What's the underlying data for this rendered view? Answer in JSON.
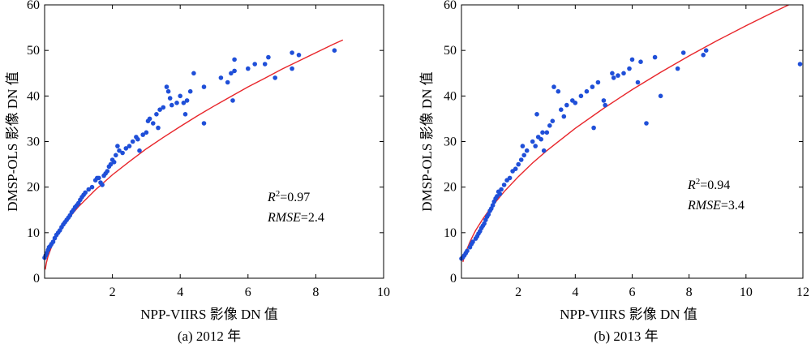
{
  "chart_data": [
    {
      "id": "a",
      "type": "scatter",
      "caption": "(a) 2012 年",
      "xlabel": "NPP-VIIRS 影像 DN 值",
      "ylabel": "DMSP-OLS 影像 DN 值",
      "xlim": [
        0,
        10
      ],
      "ylim": [
        0,
        60
      ],
      "xticks": [
        2,
        4,
        6,
        8,
        10
      ],
      "yticks": [
        0,
        10,
        20,
        30,
        40,
        50,
        60
      ],
      "xtick_labels": [
        "2",
        "4",
        "6",
        "8",
        "10"
      ],
      "ytick_labels": [
        "0",
        "10",
        "20",
        "30",
        "40",
        "50",
        "60"
      ],
      "grid": false,
      "point_color": "#1f4fd8",
      "fit_color": "#e8262b",
      "fit_curve": [
        [
          0.02,
          1.9
        ],
        [
          0.05,
          3.3
        ],
        [
          0.1,
          4.8
        ],
        [
          0.2,
          6.8
        ],
        [
          0.3,
          8.4
        ],
        [
          0.4,
          9.7
        ],
        [
          0.5,
          10.9
        ],
        [
          0.75,
          13.5
        ],
        [
          1.0,
          15.7
        ],
        [
          1.5,
          19.4
        ],
        [
          2.0,
          22.7
        ],
        [
          2.5,
          25.6
        ],
        [
          3.0,
          28.4
        ],
        [
          3.5,
          30.9
        ],
        [
          4.0,
          33.3
        ],
        [
          4.5,
          35.6
        ],
        [
          5.0,
          37.8
        ],
        [
          5.5,
          39.9
        ],
        [
          6.0,
          42.0
        ],
        [
          6.5,
          43.9
        ],
        [
          7.0,
          45.9
        ],
        [
          7.5,
          47.7
        ],
        [
          8.0,
          49.5
        ],
        [
          8.5,
          51.3
        ],
        [
          8.8,
          52.3
        ]
      ],
      "points": [
        [
          0.0,
          4.5
        ],
        [
          0.03,
          5.0
        ],
        [
          0.06,
          5.5
        ],
        [
          0.1,
          6.2
        ],
        [
          0.13,
          6.8
        ],
        [
          0.16,
          7.0
        ],
        [
          0.2,
          7.5
        ],
        [
          0.25,
          8.0
        ],
        [
          0.3,
          8.8
        ],
        [
          0.35,
          9.5
        ],
        [
          0.4,
          10.0
        ],
        [
          0.45,
          10.5
        ],
        [
          0.5,
          11.2
        ],
        [
          0.55,
          11.8
        ],
        [
          0.6,
          12.3
        ],
        [
          0.65,
          12.8
        ],
        [
          0.7,
          13.3
        ],
        [
          0.75,
          13.8
        ],
        [
          0.8,
          14.5
        ],
        [
          0.85,
          15.0
        ],
        [
          0.9,
          15.6
        ],
        [
          0.95,
          16.0
        ],
        [
          1.0,
          16.5
        ],
        [
          1.05,
          17.2
        ],
        [
          1.1,
          17.8
        ],
        [
          1.15,
          18.3
        ],
        [
          1.2,
          18.8
        ],
        [
          1.3,
          19.5
        ],
        [
          1.4,
          20.0
        ],
        [
          1.5,
          21.5
        ],
        [
          1.55,
          22.0
        ],
        [
          1.6,
          22.0
        ],
        [
          1.65,
          21.0
        ],
        [
          1.7,
          20.5
        ],
        [
          1.75,
          22.5
        ],
        [
          1.8,
          23.0
        ],
        [
          1.85,
          23.5
        ],
        [
          1.9,
          24.5
        ],
        [
          1.95,
          25.0
        ],
        [
          2.0,
          26.0
        ],
        [
          2.05,
          25.5
        ],
        [
          2.1,
          27.0
        ],
        [
          2.15,
          29.0
        ],
        [
          2.2,
          28.0
        ],
        [
          2.3,
          27.5
        ],
        [
          2.4,
          28.5
        ],
        [
          2.5,
          29.0
        ],
        [
          2.6,
          30.0
        ],
        [
          2.7,
          31.0
        ],
        [
          2.75,
          30.5
        ],
        [
          2.8,
          28.0
        ],
        [
          2.9,
          31.5
        ],
        [
          3.0,
          32.0
        ],
        [
          3.05,
          34.5
        ],
        [
          3.1,
          35.0
        ],
        [
          3.2,
          34.0
        ],
        [
          3.3,
          36.0
        ],
        [
          3.35,
          33.0
        ],
        [
          3.4,
          37.0
        ],
        [
          3.5,
          37.5
        ],
        [
          3.6,
          42.0
        ],
        [
          3.65,
          41.0
        ],
        [
          3.7,
          39.5
        ],
        [
          3.75,
          38.0
        ],
        [
          3.9,
          38.5
        ],
        [
          4.0,
          40.0
        ],
        [
          4.1,
          38.5
        ],
        [
          4.15,
          36.0
        ],
        [
          4.2,
          39.0
        ],
        [
          4.3,
          41.0
        ],
        [
          4.4,
          45.0
        ],
        [
          4.7,
          42.0
        ],
        [
          4.7,
          34.0
        ],
        [
          5.2,
          44.0
        ],
        [
          5.4,
          43.0
        ],
        [
          5.5,
          45.0
        ],
        [
          5.55,
          39.0
        ],
        [
          5.6,
          48.0
        ],
        [
          5.6,
          45.5
        ],
        [
          6.0,
          46.0
        ],
        [
          6.2,
          47.0
        ],
        [
          6.5,
          47.0
        ],
        [
          6.6,
          48.5
        ],
        [
          6.8,
          44.0
        ],
        [
          7.3,
          49.5
        ],
        [
          7.3,
          46.0
        ],
        [
          7.5,
          49.0
        ],
        [
          8.55,
          50.0
        ]
      ],
      "annotation": {
        "r2_label": "R",
        "r2_sup": "2",
        "r2_value": "=0.97",
        "rmse_label": "RMSE",
        "rmse_value": "=2.4"
      }
    },
    {
      "id": "b",
      "type": "scatter",
      "caption": "(b) 2013 年",
      "xlabel": "NPP-VIIRS 影像 DN 值",
      "ylabel": "DMSP-OLS 影像 DN 值",
      "xlim": [
        0,
        12
      ],
      "ylim": [
        0,
        60
      ],
      "xticks": [
        2,
        4,
        6,
        8,
        10,
        12
      ],
      "yticks": [
        0,
        10,
        20,
        30,
        40,
        50,
        60
      ],
      "xtick_labels": [
        "2",
        "4",
        "6",
        "8",
        "10",
        "12"
      ],
      "ytick_labels": [
        "0",
        "10",
        "20",
        "30",
        "40",
        "50",
        "60"
      ],
      "grid": false,
      "point_color": "#1f4fd8",
      "fit_color": "#e8262b",
      "fit_curve": [
        [
          0.05,
          3.6
        ],
        [
          0.1,
          4.7
        ],
        [
          0.2,
          6.5
        ],
        [
          0.3,
          8.0
        ],
        [
          0.4,
          9.3
        ],
        [
          0.5,
          10.5
        ],
        [
          0.75,
          13.0
        ],
        [
          1.0,
          15.2
        ],
        [
          1.5,
          19.0
        ],
        [
          2.0,
          22.3
        ],
        [
          2.5,
          25.3
        ],
        [
          3.0,
          28.0
        ],
        [
          4.0,
          32.9
        ],
        [
          5.0,
          37.3
        ],
        [
          6.0,
          41.4
        ],
        [
          7.0,
          45.2
        ],
        [
          8.0,
          48.8
        ],
        [
          9.0,
          52.2
        ],
        [
          10.0,
          55.4
        ],
        [
          11.0,
          58.5
        ],
        [
          11.5,
          60.0
        ]
      ],
      "points": [
        [
          0.0,
          4.3
        ],
        [
          0.05,
          4.6
        ],
        [
          0.1,
          5.0
        ],
        [
          0.15,
          5.5
        ],
        [
          0.2,
          6.0
        ],
        [
          0.3,
          6.8
        ],
        [
          0.35,
          7.5
        ],
        [
          0.4,
          8.0
        ],
        [
          0.5,
          8.7
        ],
        [
          0.55,
          9.2
        ],
        [
          0.6,
          9.8
        ],
        [
          0.65,
          10.3
        ],
        [
          0.7,
          11.0
        ],
        [
          0.75,
          11.5
        ],
        [
          0.8,
          12.0
        ],
        [
          0.85,
          12.8
        ],
        [
          0.9,
          13.5
        ],
        [
          0.95,
          14.0
        ],
        [
          1.0,
          14.8
        ],
        [
          1.05,
          15.3
        ],
        [
          1.1,
          16.0
        ],
        [
          1.15,
          16.8
        ],
        [
          1.2,
          17.5
        ],
        [
          1.25,
          18.0
        ],
        [
          1.3,
          19.0
        ],
        [
          1.35,
          18.5
        ],
        [
          1.4,
          19.5
        ],
        [
          1.5,
          20.5
        ],
        [
          1.6,
          21.5
        ],
        [
          1.7,
          22.0
        ],
        [
          1.8,
          23.5
        ],
        [
          1.9,
          24.0
        ],
        [
          2.0,
          25.0
        ],
        [
          2.1,
          26.0
        ],
        [
          2.15,
          29.0
        ],
        [
          2.2,
          27.0
        ],
        [
          2.3,
          28.0
        ],
        [
          2.5,
          30.0
        ],
        [
          2.6,
          29.0
        ],
        [
          2.65,
          36.0
        ],
        [
          2.7,
          31.0
        ],
        [
          2.8,
          30.5
        ],
        [
          2.85,
          32.0
        ],
        [
          2.9,
          28.0
        ],
        [
          3.0,
          32.0
        ],
        [
          3.1,
          33.5
        ],
        [
          3.2,
          34.5
        ],
        [
          3.25,
          42.0
        ],
        [
          3.4,
          41.0
        ],
        [
          3.5,
          37.0
        ],
        [
          3.6,
          35.5
        ],
        [
          3.7,
          38.0
        ],
        [
          3.9,
          39.0
        ],
        [
          4.0,
          38.5
        ],
        [
          4.2,
          40.0
        ],
        [
          4.4,
          41.0
        ],
        [
          4.6,
          42.0
        ],
        [
          4.65,
          33.0
        ],
        [
          4.8,
          43.0
        ],
        [
          5.0,
          39.0
        ],
        [
          5.05,
          38.0
        ],
        [
          5.3,
          45.0
        ],
        [
          5.35,
          44.0
        ],
        [
          5.5,
          44.5
        ],
        [
          5.7,
          45.0
        ],
        [
          5.9,
          46.0
        ],
        [
          6.0,
          48.0
        ],
        [
          6.2,
          43.0
        ],
        [
          6.3,
          47.5
        ],
        [
          6.5,
          34.0
        ],
        [
          6.8,
          48.5
        ],
        [
          7.0,
          40.0
        ],
        [
          7.6,
          46.0
        ],
        [
          7.8,
          49.5
        ],
        [
          8.5,
          49.0
        ],
        [
          8.6,
          50.0
        ],
        [
          11.9,
          47.0
        ]
      ],
      "annotation": {
        "r2_label": "R",
        "r2_sup": "2",
        "r2_value": "=0.94",
        "rmse_label": "RMSE",
        "rmse_value": "=3.4"
      }
    }
  ]
}
